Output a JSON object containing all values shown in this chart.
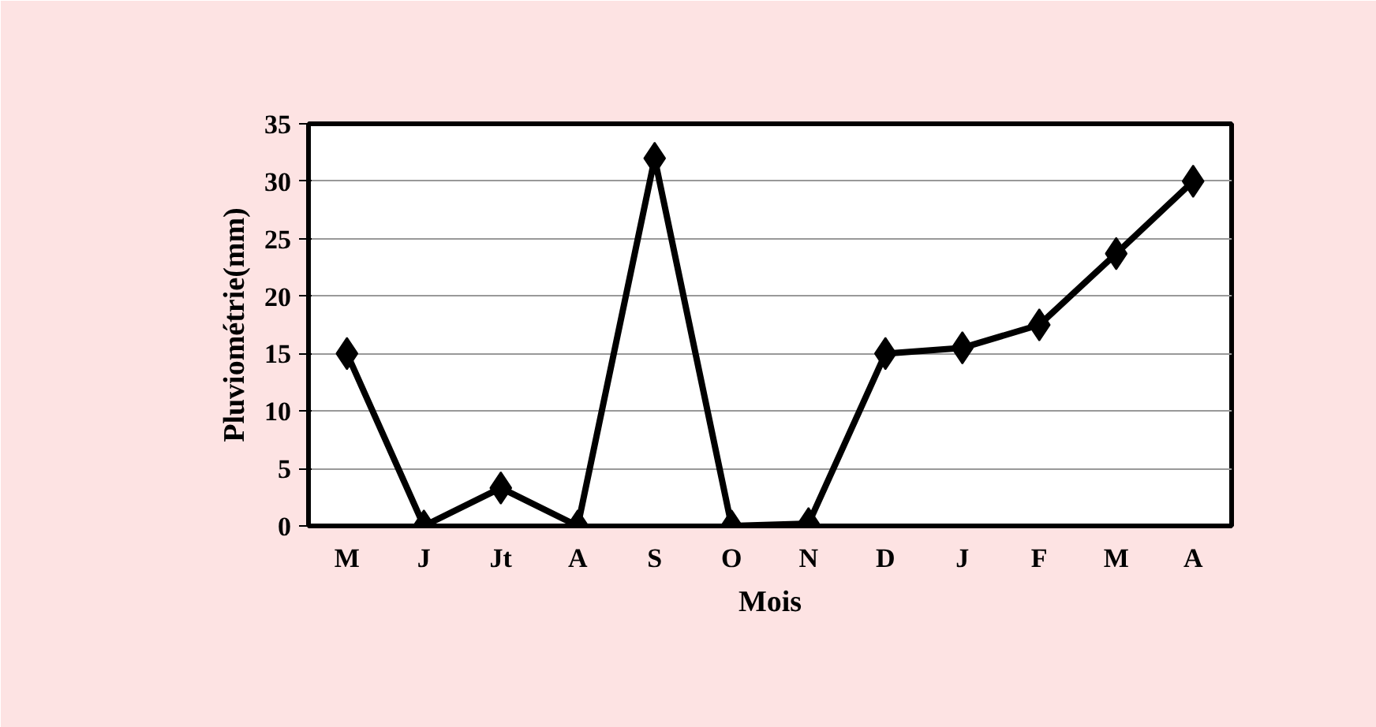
{
  "chart_data": {
    "type": "line",
    "xlabel": "Mois",
    "ylabel": "Pluviométrie(mm)",
    "categories": [
      "M",
      "J",
      "Jt",
      "A",
      "S",
      "O",
      "N",
      "D",
      "J",
      "F",
      "M",
      "A"
    ],
    "series": [
      {
        "color": "#000000",
        "values": [
          15,
          0,
          3.3,
          0,
          32,
          0,
          0.2,
          15,
          15.5,
          17.5,
          23.7,
          30
        ]
      }
    ],
    "ylim": [
      0,
      35
    ],
    "yticks": [
      0,
      5,
      10,
      15,
      20,
      25,
      30,
      35
    ],
    "grid": "y",
    "marker": "diamond",
    "line_style": "solid"
  }
}
